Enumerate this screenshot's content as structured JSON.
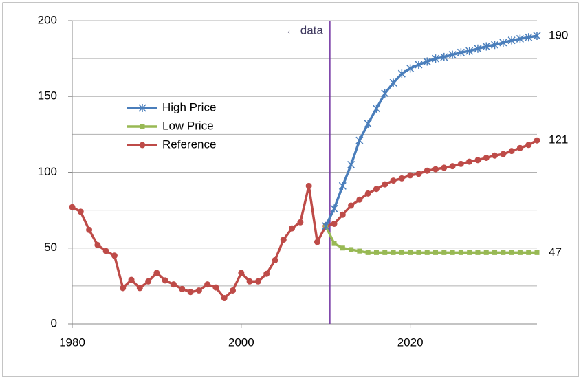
{
  "chart_data": {
    "type": "line",
    "annotation": "← data",
    "divider_x": 2010.5,
    "x": [
      1980,
      1981,
      1982,
      1983,
      1984,
      1985,
      1986,
      1987,
      1988,
      1989,
      1990,
      1991,
      1992,
      1993,
      1994,
      1995,
      1996,
      1997,
      1998,
      1999,
      2000,
      2001,
      2002,
      2003,
      2004,
      2005,
      2006,
      2007,
      2008,
      2009,
      2010,
      2011,
      2012,
      2013,
      2014,
      2015,
      2016,
      2017,
      2018,
      2019,
      2020,
      2021,
      2022,
      2023,
      2024,
      2025,
      2026,
      2027,
      2028,
      2029,
      2030,
      2031,
      2032,
      2033,
      2034,
      2035
    ],
    "series": [
      {
        "name": "High Price",
        "color": "#4a7ebb",
        "marker": "asterisk",
        "values": [
          null,
          null,
          null,
          null,
          null,
          null,
          null,
          null,
          null,
          null,
          null,
          null,
          null,
          null,
          null,
          null,
          null,
          null,
          null,
          null,
          null,
          null,
          null,
          null,
          null,
          null,
          null,
          null,
          null,
          null,
          64.5,
          76,
          91,
          105,
          121,
          132,
          142,
          152,
          159,
          165,
          168.5,
          171,
          173,
          175,
          176,
          177.5,
          179,
          180,
          181.5,
          183,
          184,
          185.5,
          187,
          188,
          189,
          190
        ]
      },
      {
        "name": "Low Price",
        "color": "#98b954",
        "marker": "square",
        "values": [
          null,
          null,
          null,
          null,
          null,
          null,
          null,
          null,
          null,
          null,
          null,
          null,
          null,
          null,
          null,
          null,
          null,
          null,
          null,
          null,
          null,
          null,
          null,
          null,
          null,
          null,
          null,
          null,
          null,
          null,
          64.5,
          53,
          50,
          49,
          48,
          47,
          47,
          47,
          47,
          47,
          47,
          47,
          47,
          47,
          47,
          47,
          47,
          47,
          47,
          47,
          47,
          47,
          47,
          47,
          47,
          47
        ]
      },
      {
        "name": "Reference",
        "color": "#be4b48",
        "marker": "circle",
        "values": [
          77,
          74,
          62,
          52,
          48,
          45,
          23.6,
          29,
          23.6,
          28,
          33.6,
          28.6,
          26,
          23,
          21,
          22,
          26,
          24,
          17,
          22,
          33.6,
          28,
          28,
          33,
          42,
          55.5,
          63,
          67,
          91,
          54,
          64.5,
          66,
          72,
          78,
          82,
          86,
          89,
          92,
          94.5,
          96,
          98,
          99,
          101,
          102,
          103,
          104,
          105.5,
          107,
          108,
          109.5,
          111,
          112,
          114,
          116,
          118,
          121
        ]
      }
    ],
    "xlim": [
      1980,
      2035
    ],
    "xticks": [
      1980,
      2000,
      2020
    ],
    "ylim": [
      0,
      200
    ],
    "yticks": [
      0,
      50,
      100,
      150,
      200
    ],
    "minor_yticks": [
      25,
      75,
      125,
      175
    ],
    "grid": true
  }
}
